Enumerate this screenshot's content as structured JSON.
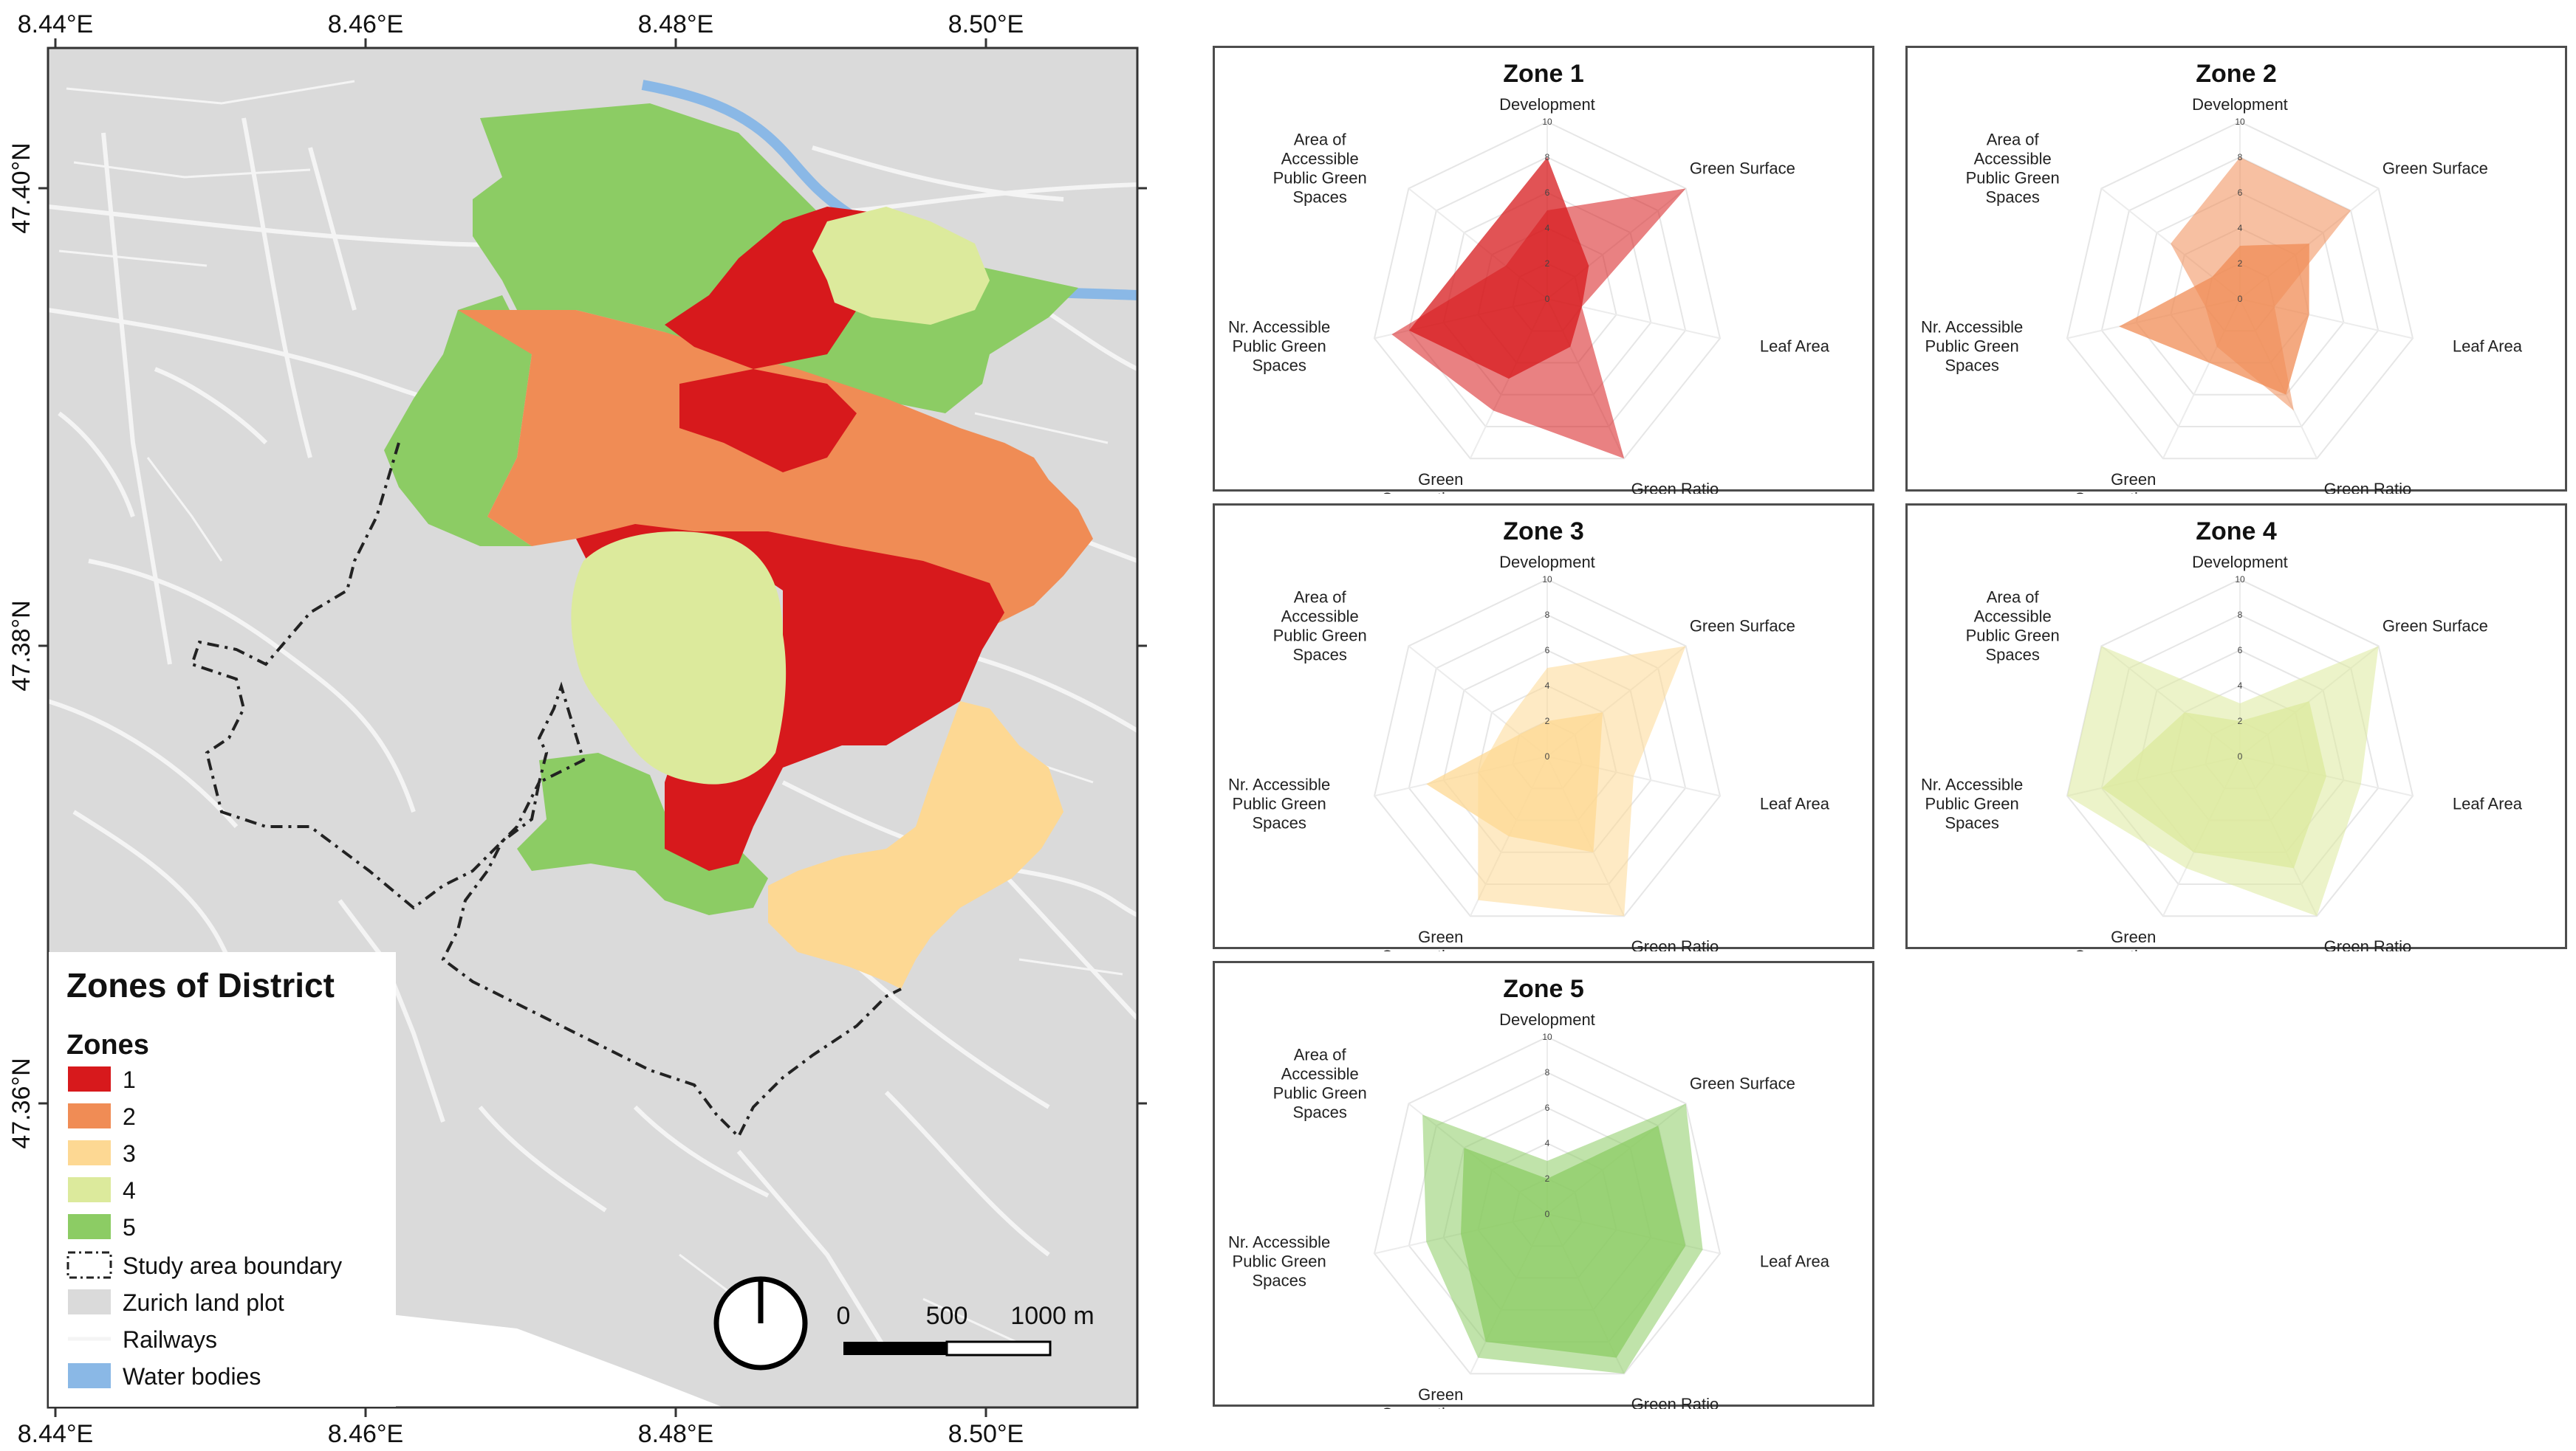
{
  "map": {
    "title": "Zones of District",
    "legend_zones_heading": "Zones",
    "zones": [
      {
        "label": "1",
        "color": "#d7191c"
      },
      {
        "label": "2",
        "color": "#f08c55"
      },
      {
        "label": "3",
        "color": "#fdd893"
      },
      {
        "label": "4",
        "color": "#dcea9c"
      },
      {
        "label": "5",
        "color": "#8ccc64"
      }
    ],
    "other_legend": [
      {
        "label": "Study area boundary",
        "kind": "dashed-box"
      },
      {
        "label": "Zurich land plot",
        "kind": "fill",
        "color": "#dadada"
      },
      {
        "label": "Railways",
        "kind": "line",
        "color": "#f4f4f4"
      },
      {
        "label": "Water bodies",
        "kind": "fill",
        "color": "#8ab8e6"
      }
    ],
    "lon_ticks": [
      "8.44°E",
      "8.46°E",
      "8.48°E",
      "8.50°E"
    ],
    "lat_ticks": [
      "47.40°N",
      "47.38°N",
      "47.36°N"
    ],
    "scale_labels": [
      "0",
      "500",
      "1000 m"
    ],
    "colors": {
      "land": "#dadada",
      "street": "#f4f4f4",
      "water": "#8ab8e6",
      "boundary": "#222222"
    }
  },
  "radar": {
    "axes": [
      "Development",
      "Green Surface",
      "Leaf Area",
      "Green Ratio",
      "Green Connection",
      "Nr. Accessible Public Green Spaces",
      "Area of Accessible Public Green Spaces"
    ],
    "scale_ticks": [
      "0",
      "2",
      "4",
      "6",
      "8",
      "10"
    ],
    "max": 10,
    "zones": [
      {
        "title": "Zone 1",
        "color": "#d7191c",
        "series": [
          [
            5,
            10,
            2,
            10,
            7,
            9,
            3
          ],
          [
            8,
            3,
            2,
            3,
            5,
            8,
            5
          ]
        ]
      },
      {
        "title": "Zone 2",
        "color": "#f08c55",
        "series": [
          [
            8,
            8,
            2,
            7,
            3,
            2,
            5
          ],
          [
            3,
            5,
            4,
            6,
            4,
            7,
            2
          ]
        ]
      },
      {
        "title": "Zone 3",
        "color": "#fdd893",
        "series": [
          [
            5,
            10,
            5,
            10,
            9,
            4,
            3
          ],
          [
            2,
            4,
            3,
            6,
            5,
            7,
            2
          ]
        ]
      },
      {
        "title": "Zone 4",
        "color": "#dcea9c",
        "series": [
          [
            3,
            10,
            7,
            10,
            7,
            10,
            10
          ],
          [
            2,
            5,
            5,
            7,
            6,
            8,
            4
          ]
        ]
      },
      {
        "title": "Zone 5",
        "color": "#8ccc64",
        "series": [
          [
            3,
            10,
            9,
            10,
            9,
            7,
            9
          ],
          [
            2,
            8,
            8,
            9,
            8,
            5,
            6
          ]
        ]
      }
    ]
  }
}
